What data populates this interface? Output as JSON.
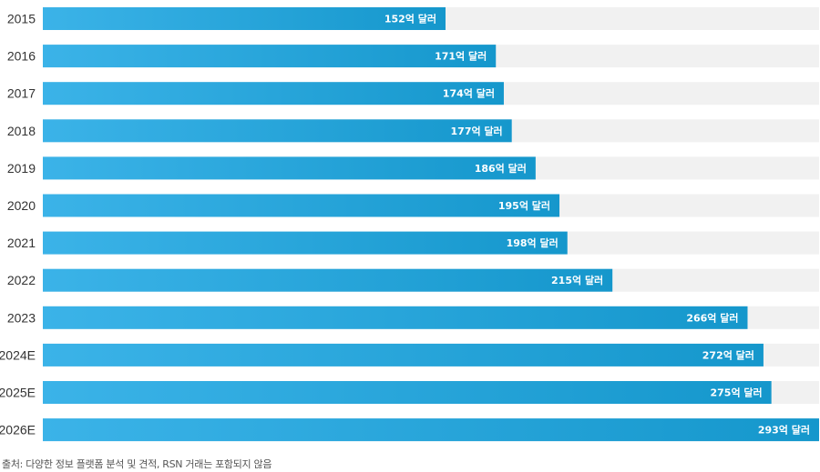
{
  "chart_data": {
    "type": "bar",
    "orientation": "horizontal",
    "categories": [
      "2015",
      "2016",
      "2017",
      "2018",
      "2019",
      "2020",
      "2021",
      "2022",
      "2023",
      "2024E",
      "2025E",
      "2026E"
    ],
    "values": [
      152,
      171,
      174,
      177,
      186,
      195,
      198,
      215,
      266,
      272,
      275,
      293
    ],
    "value_labels": [
      "152억 달러",
      "171억 달러",
      "174억 달러",
      "177억 달러",
      "186억 달러",
      "195억 달러",
      "198억 달러",
      "215억 달러",
      "266억 달러",
      "272억 달러",
      "275억 달러",
      "293억 달러"
    ],
    "unit": "억 달러",
    "xlim": [
      0,
      293
    ],
    "grid": false,
    "legend": false,
    "title": "",
    "xlabel": "",
    "ylabel": "",
    "colors": {
      "bar_start": "#3bb3e8",
      "bar_end": "#1597cc",
      "track": "#f1f1f1",
      "label": "#333333",
      "value_text": "#ffffff"
    }
  },
  "source_note": "출처: 다양한 정보 플랫폼 분석 및 견적, RSN 거래는 포함되지 않음"
}
